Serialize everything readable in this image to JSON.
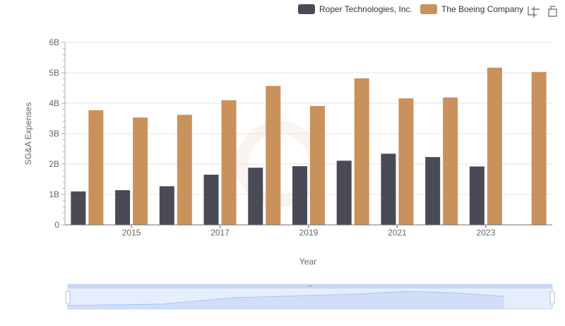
{
  "chart_data": {
    "type": "bar",
    "x": [
      2014,
      2015,
      2016,
      2017,
      2018,
      2019,
      2020,
      2021,
      2022,
      2023,
      2024
    ],
    "xticks": [
      "2015",
      "2017",
      "2019",
      "2021",
      "2023"
    ],
    "xtick_values": [
      2015,
      2017,
      2019,
      2021,
      2023
    ],
    "series": [
      {
        "name": "Roper Technologies, Inc.",
        "color": "#4a4956",
        "values": [
          1.1,
          1.14,
          1.27,
          1.65,
          1.88,
          1.93,
          2.11,
          2.34,
          2.23,
          1.92,
          null
        ]
      },
      {
        "name": "The Boeing Company",
        "color": "#c9915c",
        "values": [
          3.77,
          3.53,
          3.62,
          4.1,
          4.57,
          3.91,
          4.82,
          4.16,
          4.19,
          5.17,
          5.03
        ]
      }
    ],
    "ylabel": "SG&A Expenses",
    "xlabel": "Year",
    "ylim": [
      0,
      6
    ],
    "yticks": [
      "0",
      "1B",
      "2B",
      "3B",
      "4B",
      "5B",
      "6B"
    ],
    "grid": true,
    "legend_position": "top-right"
  },
  "toolbar": {
    "zoom_icon": "zoom-icon",
    "restore_icon": "restore-icon"
  },
  "data_zoom": {
    "range": [
      0,
      1
    ],
    "area_color": "#dfe8fb"
  }
}
